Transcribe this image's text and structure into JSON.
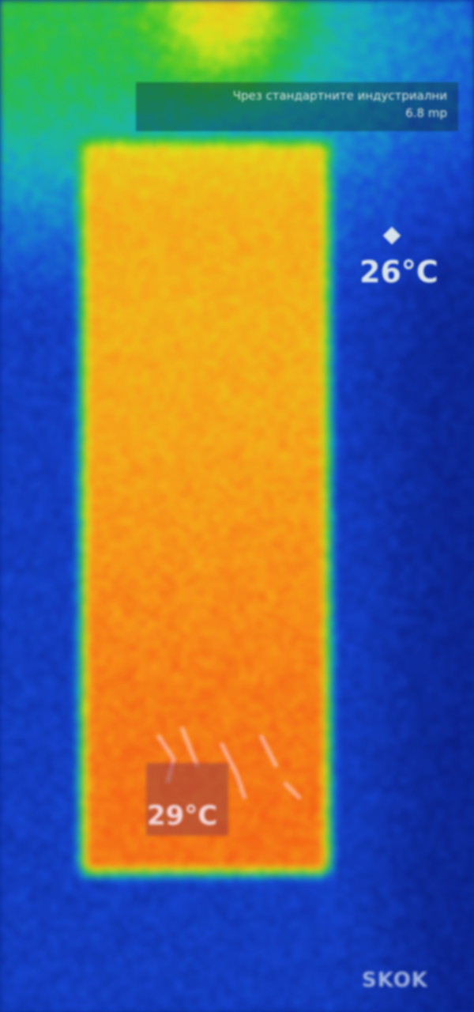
{
  "image": {
    "kind": "thermal-image",
    "palette": [
      "#0a1f86",
      "#1848d8",
      "#18b4c8",
      "#2fc02a",
      "#dfe81c",
      "#f8a11a",
      "#f24a14"
    ]
  },
  "caption": {
    "line1": "Чрез стандартните индустриални",
    "line2": "6.8 mp"
  },
  "spot_reading": {
    "value": "26°C",
    "marker_icon": "diamond-marker-icon"
  },
  "hot_reading": {
    "value": "29°C"
  },
  "brand": {
    "text": "SKOK"
  }
}
